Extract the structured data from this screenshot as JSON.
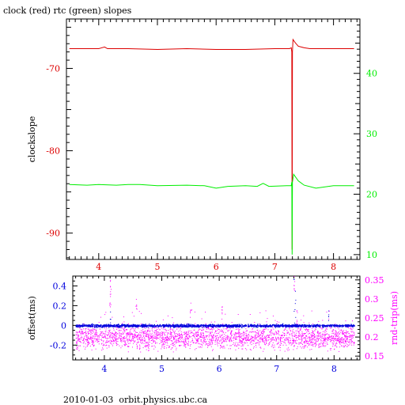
{
  "title": "clock (red) rtc (green) slopes",
  "footer": "2010-01-03  orbit.physics.ubc.ca",
  "colors": {
    "red": "#dd0000",
    "green": "#00ee00",
    "blue": "#0000dd",
    "magenta": "#ff00ff",
    "axis": "#000000"
  },
  "chart_data": [
    {
      "type": "line",
      "ylabel": "clockslope",
      "xlim": [
        3.45,
        8.45
      ],
      "ylim": [
        -93.2,
        -64
      ],
      "y2lim": [
        9.2,
        49
      ],
      "x_ticks": [
        "4",
        "5",
        "6",
        "7",
        "8"
      ],
      "y_ticks": [
        "-70",
        "-80",
        "-90"
      ],
      "y2_ticks": [
        "40",
        "30",
        "20",
        "10"
      ],
      "grid": false,
      "series": [
        {
          "name": "clock",
          "axis": "left",
          "points": [
            [
              3.5,
              -67.6
            ],
            [
              4.0,
              -67.6
            ],
            [
              4.1,
              -67.4
            ],
            [
              4.15,
              -67.6
            ],
            [
              4.5,
              -67.6
            ],
            [
              5.0,
              -67.7
            ],
            [
              5.5,
              -67.6
            ],
            [
              6.0,
              -67.7
            ],
            [
              6.5,
              -67.7
            ],
            [
              7.0,
              -67.6
            ],
            [
              7.25,
              -67.6
            ],
            [
              7.28,
              -67.5
            ],
            [
              7.29,
              -68.0
            ],
            [
              7.295,
              -92.0
            ],
            [
              7.3,
              -68.0
            ],
            [
              7.31,
              -66.5
            ],
            [
              7.35,
              -66.9
            ],
            [
              7.4,
              -67.3
            ],
            [
              7.5,
              -67.5
            ],
            [
              7.6,
              -67.6
            ],
            [
              8.0,
              -67.6
            ],
            [
              8.35,
              -67.6
            ]
          ]
        },
        {
          "name": "rtc",
          "axis": "right",
          "points": [
            [
              3.5,
              21.6
            ],
            [
              3.8,
              21.5
            ],
            [
              4.0,
              21.6
            ],
            [
              4.3,
              21.5
            ],
            [
              4.5,
              21.6
            ],
            [
              4.7,
              21.6
            ],
            [
              5.0,
              21.4
            ],
            [
              5.5,
              21.5
            ],
            [
              5.8,
              21.4
            ],
            [
              6.0,
              21.0
            ],
            [
              6.2,
              21.3
            ],
            [
              6.5,
              21.4
            ],
            [
              6.7,
              21.3
            ],
            [
              6.8,
              21.8
            ],
            [
              6.9,
              21.3
            ],
            [
              7.2,
              21.4
            ],
            [
              7.28,
              21.4
            ],
            [
              7.29,
              22.0
            ],
            [
              7.295,
              10.0
            ],
            [
              7.3,
              22.0
            ],
            [
              7.32,
              23.3
            ],
            [
              7.4,
              22.2
            ],
            [
              7.5,
              21.5
            ],
            [
              7.7,
              21.0
            ],
            [
              8.0,
              21.4
            ],
            [
              8.35,
              21.4
            ]
          ]
        }
      ]
    },
    {
      "type": "scatter",
      "ylabel": "offset(ms)",
      "y2label": "rnd-trip(ms)",
      "xlim": [
        3.45,
        8.45
      ],
      "ylim": [
        -0.35,
        0.5
      ],
      "y2lim": [
        0.14,
        0.36
      ],
      "x_ticks": [
        "4",
        "5",
        "6",
        "7",
        "8"
      ],
      "y_ticks": [
        "0.4",
        "0.2",
        "0",
        "-0.2"
      ],
      "y2_ticks": [
        "0.35",
        "0.3",
        "0.25",
        "0.2",
        "0.15"
      ],
      "grid": false,
      "series": [
        {
          "name": "offset",
          "axis": "left",
          "x_range": [
            3.5,
            8.35
          ],
          "baseline": 0.0,
          "spread": 0.012,
          "outliers": [
            [
              4.1,
              0.14
            ],
            [
              7.3,
              0.47
            ],
            [
              7.32,
              0.35
            ],
            [
              7.9,
              0.15
            ]
          ]
        },
        {
          "name": "rnd-trip",
          "axis": "right",
          "x_range": [
            3.5,
            8.35
          ],
          "baseline": 0.2,
          "spread": 0.025,
          "outliers": [
            [
              4.1,
              0.35
            ],
            [
              4.1,
              0.32
            ],
            [
              4.55,
              0.3
            ],
            [
              5.5,
              0.29
            ],
            [
              6.05,
              0.28
            ],
            [
              7.3,
              0.36
            ],
            [
              7.35,
              0.27
            ]
          ]
        }
      ]
    }
  ]
}
